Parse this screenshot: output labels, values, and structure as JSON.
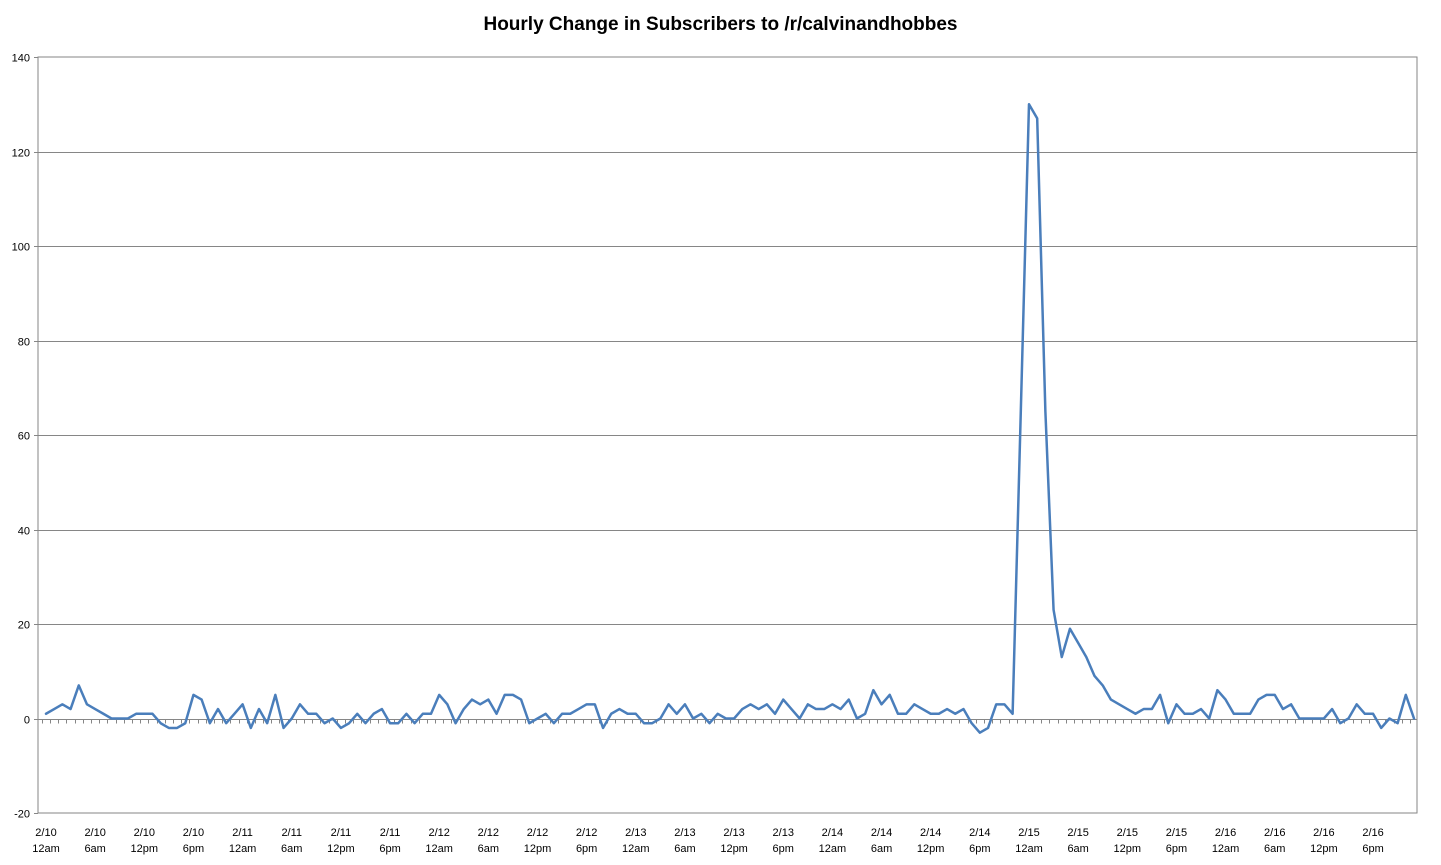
{
  "chart_data": {
    "type": "line",
    "title": "Hourly Change in Subscribers to /r/calvinandhobbes",
    "xlabel": "",
    "ylabel": "",
    "ylim": [
      -20,
      140
    ],
    "yticks": [
      -20,
      0,
      20,
      40,
      60,
      80,
      100,
      120,
      140
    ],
    "grid": true,
    "legend": "none",
    "line_color": "#4a7ebb",
    "x_tick_labels": [
      {
        "date": "2/10",
        "time": "12am"
      },
      {
        "date": "2/10",
        "time": "6am"
      },
      {
        "date": "2/10",
        "time": "12pm"
      },
      {
        "date": "2/10",
        "time": "6pm"
      },
      {
        "date": "2/11",
        "time": "12am"
      },
      {
        "date": "2/11",
        "time": "6am"
      },
      {
        "date": "2/11",
        "time": "12pm"
      },
      {
        "date": "2/11",
        "time": "6pm"
      },
      {
        "date": "2/12",
        "time": "12am"
      },
      {
        "date": "2/12",
        "time": "6am"
      },
      {
        "date": "2/12",
        "time": "12pm"
      },
      {
        "date": "2/12",
        "time": "6pm"
      },
      {
        "date": "2/13",
        "time": "12am"
      },
      {
        "date": "2/13",
        "time": "6am"
      },
      {
        "date": "2/13",
        "time": "12pm"
      },
      {
        "date": "2/13",
        "time": "6pm"
      },
      {
        "date": "2/14",
        "time": "12am"
      },
      {
        "date": "2/14",
        "time": "6am"
      },
      {
        "date": "2/14",
        "time": "12pm"
      },
      {
        "date": "2/14",
        "time": "6pm"
      },
      {
        "date": "2/15",
        "time": "12am"
      },
      {
        "date": "2/15",
        "time": "6am"
      },
      {
        "date": "2/15",
        "time": "12pm"
      },
      {
        "date": "2/15",
        "time": "6pm"
      },
      {
        "date": "2/16",
        "time": "12am"
      },
      {
        "date": "2/16",
        "time": "6am"
      },
      {
        "date": "2/16",
        "time": "12pm"
      },
      {
        "date": "2/16",
        "time": "6pm"
      }
    ],
    "series": [
      {
        "values": [
          1,
          2,
          3,
          2,
          7,
          3,
          2,
          1,
          0,
          0,
          0,
          1,
          1,
          1,
          -1,
          -2,
          -2,
          -1,
          5,
          4,
          -1,
          2,
          -1,
          1,
          3,
          -2,
          2,
          -1,
          5,
          -2,
          0,
          3,
          1,
          1,
          -1,
          0,
          -2,
          -1,
          1,
          -1,
          1,
          2,
          -1,
          -1,
          1,
          -1,
          1,
          1,
          5,
          3,
          -1,
          2,
          4,
          3,
          4,
          1,
          5,
          5,
          4,
          -1,
          0,
          1,
          -1,
          1,
          1,
          2,
          3,
          3,
          -2,
          1,
          2,
          1,
          1,
          -1,
          -1,
          0,
          3,
          1,
          3,
          0,
          1,
          -1,
          1,
          0,
          0,
          2,
          3,
          2,
          3,
          1,
          4,
          2,
          0,
          3,
          2,
          2,
          3,
          2,
          4,
          0,
          1,
          6,
          3,
          5,
          1,
          1,
          3,
          2,
          1,
          1,
          2,
          1,
          2,
          -1,
          -3,
          -2,
          3,
          3,
          1,
          65,
          130,
          127,
          65,
          23,
          13,
          19,
          16,
          13,
          9,
          7,
          4,
          3,
          2,
          1,
          2,
          2,
          5,
          -1,
          3,
          1,
          1,
          2,
          0,
          6,
          4,
          1,
          1,
          1,
          4,
          5,
          5,
          2,
          3,
          0,
          0,
          0,
          0,
          2,
          -1,
          0,
          3,
          1,
          1,
          -2,
          0,
          -1,
          5,
          0
        ]
      }
    ]
  }
}
